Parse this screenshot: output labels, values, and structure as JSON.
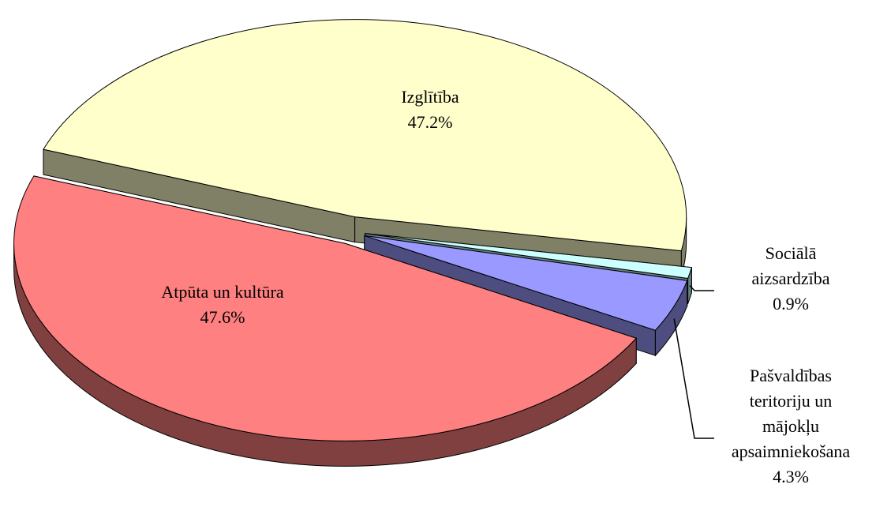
{
  "chart_data": {
    "type": "pie3d",
    "categories": [
      "Izglītība",
      "Sociālā aizsardzība",
      "Pašvaldības teritoriju un mājokļu apsaimniekošana",
      "Atpūta un kultūra"
    ],
    "values": [
      47.2,
      0.9,
      4.3,
      47.6
    ],
    "value_labels": [
      "47.2%",
      "0.9%",
      "4.3%",
      "47.6%"
    ],
    "colors": [
      "#ffffcc",
      "#ccffff",
      "#9999ff",
      "#ff8080"
    ]
  }
}
